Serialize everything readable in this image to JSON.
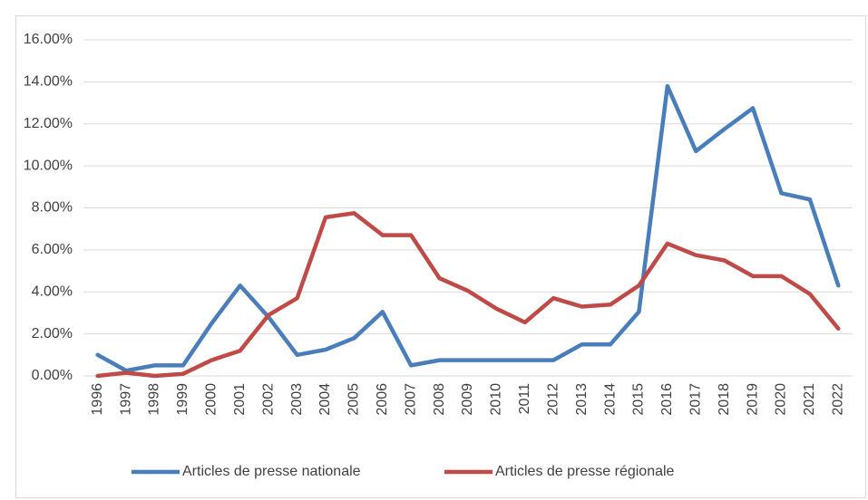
{
  "chart_data": {
    "type": "line",
    "categories": [
      "1996",
      "1997",
      "1998",
      "1999",
      "2000",
      "2001",
      "2002",
      "2003",
      "2004",
      "2005",
      "2006",
      "2007",
      "2008",
      "2009",
      "2010",
      "2011",
      "2012",
      "2013",
      "2014",
      "2015",
      "2016",
      "2017",
      "2018",
      "2019",
      "2020",
      "2021",
      "2022"
    ],
    "series": [
      {
        "name": "Articles de presse nationale",
        "color": "#4a7ebb",
        "values": [
          1.0,
          0.25,
          0.5,
          0.5,
          2.5,
          4.3,
          2.8,
          1.0,
          1.25,
          1.8,
          3.05,
          0.5,
          0.75,
          0.75,
          0.75,
          0.75,
          0.75,
          1.5,
          1.5,
          3.05,
          13.8,
          10.7,
          11.75,
          12.75,
          8.7,
          8.4,
          4.3
        ]
      },
      {
        "name": "Articles de presse régionale",
        "color": "#be4b48",
        "values": [
          0.0,
          0.15,
          0.0,
          0.1,
          0.75,
          1.2,
          2.9,
          3.7,
          7.55,
          7.75,
          6.7,
          6.7,
          4.65,
          4.05,
          3.2,
          2.55,
          3.7,
          3.3,
          3.4,
          4.3,
          6.3,
          5.75,
          5.5,
          4.75,
          4.75,
          3.9,
          2.25
        ]
      }
    ],
    "ylim": [
      0,
      16
    ],
    "yticks": [
      {
        "value": 0,
        "label": "0.00%"
      },
      {
        "value": 2,
        "label": "2.00%"
      },
      {
        "value": 4,
        "label": "4.00%"
      },
      {
        "value": 6,
        "label": "6.00%"
      },
      {
        "value": 8,
        "label": "8.00%"
      },
      {
        "value": 10,
        "label": "10.00%"
      },
      {
        "value": 12,
        "label": "12.00%"
      },
      {
        "value": 14,
        "label": "14.00%"
      },
      {
        "value": 16,
        "label": "16.00%"
      }
    ],
    "grid": true,
    "legend": "bottom"
  }
}
